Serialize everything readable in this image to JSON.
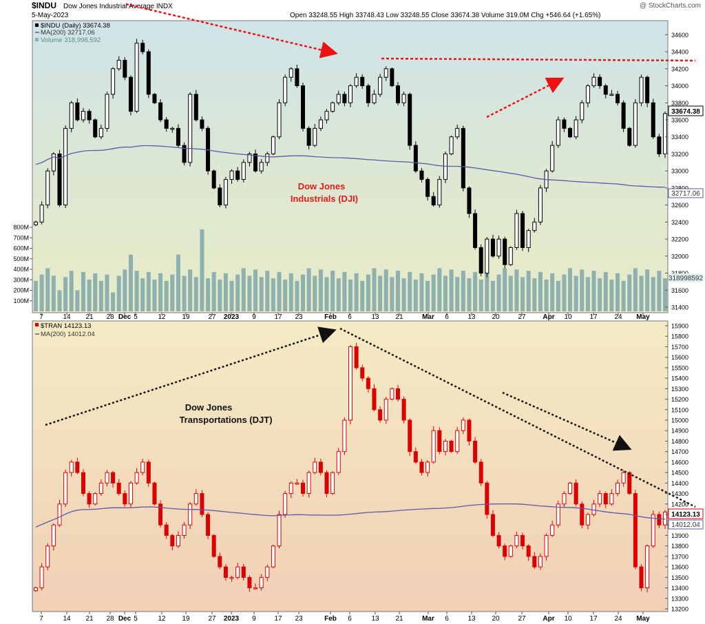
{
  "header": {
    "symbol": "$INDU",
    "name": "Dow Jones Industrial Average INDX",
    "date": "5-May-2023",
    "watermark": "@ StockCharts.com",
    "ohlc": "Open 33248.55  High 33748.43  Low 33248.55  Close 33674.38  Volume 319.0M  Chg +546.64 (+1.65%)"
  },
  "chart_data": [
    {
      "type": "candlestick",
      "title": "$INDU (Daily) 33674.38",
      "legend": [
        "$INDU (Daily) 33674.38",
        "MA(200) 32717.06",
        "Volume 318,998,592"
      ],
      "annotation": [
        "Dow Jones",
        "Industrials (DJI)"
      ],
      "ylim": [
        31400,
        34700
      ],
      "yticks": [
        31400,
        31600,
        31800,
        32000,
        32200,
        32400,
        32600,
        32800,
        33000,
        33200,
        33400,
        33600,
        33800,
        34000,
        34200,
        34400,
        34600
      ],
      "volume_ticks": [
        "100M",
        "200M",
        "300M",
        "400M",
        "500M",
        "600M",
        "700M",
        "800M"
      ],
      "volume_ylim": [
        0,
        800
      ],
      "last_price_label": "33674.38",
      "ma_label": "32717.06",
      "volume_label": "318998592",
      "close": [
        32400,
        32600,
        33000,
        33200,
        32600,
        33500,
        33800,
        33600,
        33700,
        33600,
        33400,
        33500,
        33900,
        34200,
        34300,
        34100,
        33700,
        34500,
        34400,
        33900,
        33800,
        33600,
        33500,
        33500,
        33300,
        33100,
        33900,
        33600,
        33500,
        33000,
        32800,
        32600,
        32900,
        33000,
        32900,
        33100,
        33200,
        33000,
        33100,
        33200,
        33400,
        33800,
        34100,
        34200,
        34000,
        33500,
        33300,
        33500,
        33600,
        33700,
        33800,
        33900,
        33800,
        34000,
        34100,
        34000,
        33800,
        33900,
        34100,
        34200,
        34000,
        33800,
        33900,
        33300,
        33000,
        32900,
        32700,
        32600,
        32900,
        33200,
        33400,
        33500,
        32800,
        32500,
        32100,
        31800,
        32200,
        32000,
        32200,
        31900,
        32100,
        32500,
        32100,
        32300,
        32400,
        32800,
        33000,
        33300,
        33600,
        33500,
        33400,
        33600,
        33800,
        34000,
        34100,
        34000,
        33900,
        33900,
        33800,
        33500,
        33300,
        33800,
        34100,
        33800,
        33400,
        33200,
        33674
      ]
    },
    {
      "type": "candlestick",
      "title": "$TRAN 14123.13",
      "legend": [
        "$TRAN 14123.13",
        "MA(200) 14012.04"
      ],
      "annotation": [
        "Dow Jones",
        "Transportations (DJT)"
      ],
      "ylim": [
        13200,
        15900
      ],
      "yticks": [
        13200,
        13300,
        13400,
        13500,
        13600,
        13700,
        13800,
        13900,
        14000,
        14100,
        14200,
        14300,
        14400,
        14500,
        14600,
        14700,
        14800,
        14900,
        15000,
        15100,
        15200,
        15300,
        15400,
        15500,
        15600,
        15700,
        15800,
        15900
      ],
      "last_price_label": "14123.13",
      "ma_label": "14012.04",
      "close": [
        13400,
        13600,
        13800,
        14000,
        14200,
        14500,
        14600,
        14500,
        14300,
        14200,
        14300,
        14400,
        14500,
        14400,
        14300,
        14200,
        14400,
        14500,
        14600,
        14400,
        14200,
        14000,
        13900,
        13800,
        13900,
        14000,
        14200,
        14300,
        14100,
        13900,
        13700,
        13600,
        13500,
        13500,
        13600,
        13500,
        13400,
        13400,
        13500,
        13600,
        13800,
        14100,
        14300,
        14400,
        14400,
        14300,
        14500,
        14600,
        14500,
        14300,
        14500,
        14700,
        15000,
        15700,
        15500,
        15400,
        15300,
        15100,
        15000,
        15200,
        15300,
        15200,
        15000,
        14700,
        14600,
        14500,
        14600,
        14900,
        14700,
        14800,
        14700,
        14900,
        15000,
        14800,
        14600,
        14400,
        14100,
        13900,
        13800,
        13700,
        13800,
        13900,
        13800,
        13700,
        13600,
        13700,
        13900,
        14000,
        14200,
        14300,
        14400,
        14200,
        14000,
        14100,
        14200,
        14300,
        14200,
        14300,
        14400,
        14500,
        14300,
        13600,
        13400,
        13800,
        14100,
        14000,
        14123
      ]
    }
  ],
  "x_labels": [
    "7",
    "14",
    "21",
    "28",
    "Dec",
    "5",
    "12",
    "19",
    "27",
    "2023",
    "9",
    "17",
    "23",
    "Feb",
    "6",
    "13",
    "21",
    "Mar",
    "6",
    "13",
    "20",
    "27",
    "Apr",
    "10",
    "17",
    "24",
    "May"
  ],
  "colors": {
    "up": "#ffffff",
    "down_top": "#000000",
    "down_bottom": "#dd0000",
    "ma": "#5a5aa8",
    "volume": "#8fb0b0",
    "arrow_red": "#ee1111",
    "arrow_black": "#111111",
    "annotation_red": "#e21a1a"
  }
}
